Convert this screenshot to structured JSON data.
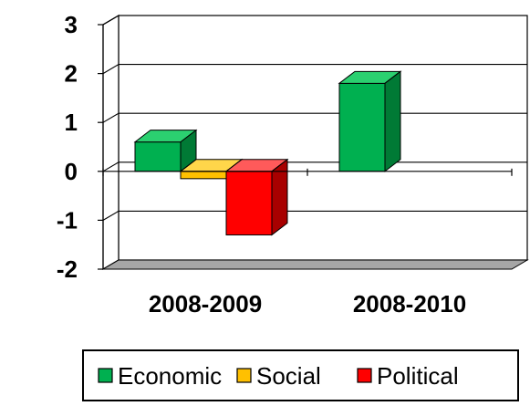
{
  "chart_data": {
    "type": "bar",
    "title": "",
    "xlabel": "",
    "ylabel": "",
    "categories": [
      "2008-2009",
      "2008-2010"
    ],
    "ylim": [
      -2,
      3
    ],
    "yticks": [
      "3",
      "2",
      "1",
      "0",
      "-1",
      "-2"
    ],
    "grid": true,
    "three_d": true,
    "legend_position": "bottom",
    "series": [
      {
        "name": "Economic",
        "values": [
          0.6,
          1.8
        ],
        "color": "#00b050",
        "side_color": "#007a35",
        "top_color": "#2bd070"
      },
      {
        "name": "Social",
        "values": [
          -0.15,
          0
        ],
        "color": "#ffc000",
        "side_color": "#b88a00",
        "top_color": "#ffd64a"
      },
      {
        "name": "Political",
        "values": [
          -1.3,
          0
        ],
        "color": "#ff0000",
        "side_color": "#a80000",
        "top_color": "#ff5a5a"
      }
    ]
  }
}
